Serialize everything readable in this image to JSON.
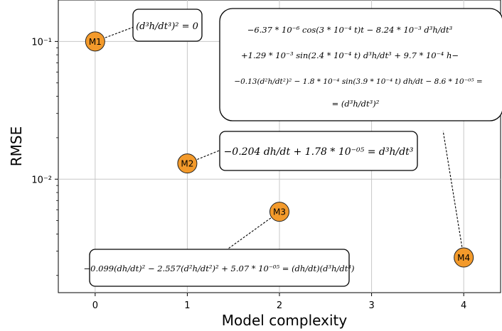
{
  "chart_data": {
    "type": "scatter",
    "xlabel": "Model complexity",
    "ylabel": "RMSE",
    "yscale": "log",
    "xlim": [
      -0.4,
      4.4
    ],
    "ylim": [
      0.0015,
      0.2
    ],
    "grid": true,
    "x_ticks": [
      0,
      1,
      2,
      3,
      4
    ],
    "x_tick_labels": [
      "0",
      "1",
      "2",
      "3",
      "4"
    ],
    "y_ticks": [
      0.01,
      0.1
    ],
    "y_tick_labels": [
      "10⁻²",
      "10⁻¹"
    ],
    "marker_color": "#f39a2b",
    "points": [
      {
        "label": "M1",
        "x": 0,
        "y": 0.1
      },
      {
        "label": "M2",
        "x": 1,
        "y": 0.013
      },
      {
        "label": "M3",
        "x": 2,
        "y": 0.0058
      },
      {
        "label": "M4",
        "x": 4,
        "y": 0.0027
      }
    ],
    "annotations": [
      {
        "model": "M1",
        "lines": [
          "(d³h/dt³)² = 0"
        ]
      },
      {
        "model": "M2",
        "lines": [
          "−0.204 dh/dt + 1.78 * 10⁻⁰⁵ = d³h/dt³"
        ]
      },
      {
        "model": "M3",
        "lines": [
          "−0.099(dh/dt)² − 2.557(d²h/dt²)² + 5.07 * 10⁻⁰⁵ = (dh/dt)(d³h/dt³)"
        ]
      },
      {
        "model": "M4",
        "lines": [
          "−6.37 * 10⁻⁶ cos(3 * 10⁻⁴ t)t − 8.24 * 10⁻³ d³h/dt³",
          "+1.29 * 10⁻³ sin(2.4 * 10⁻⁴ t) d³h/dt³ + 9.7 * 10⁻⁴ h−",
          "−0.13(d²h/dt²)² − 1.8 * 10⁻⁴ sin(3.9 * 10⁻⁴ t) dh/dt − 8.6 * 10⁻⁰⁵ =",
          "= (d³h/dt³)²"
        ]
      }
    ]
  }
}
